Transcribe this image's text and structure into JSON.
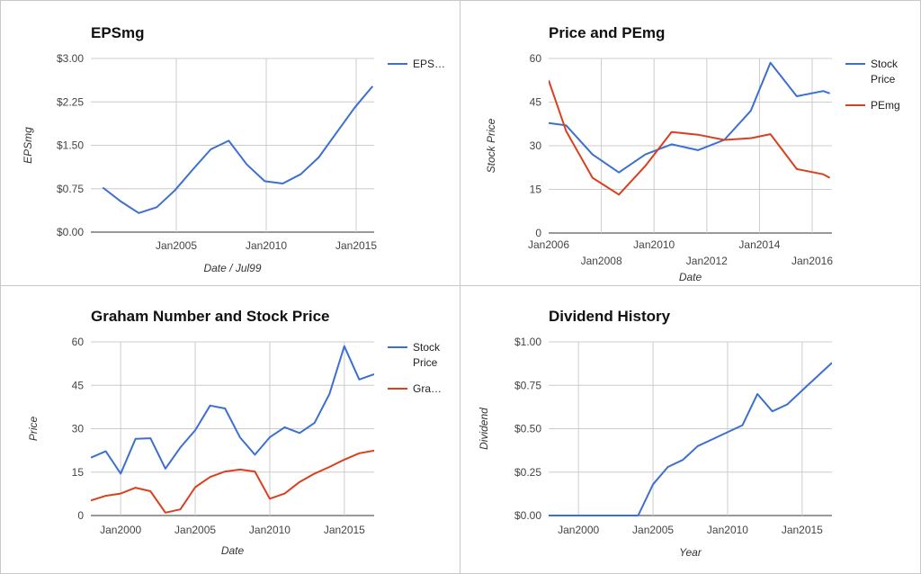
{
  "chart_data": [
    {
      "type": "line",
      "title": "EPSmg",
      "xlabel": "Date / Jul99",
      "ylabel": "EPSmg",
      "ylim": [
        0,
        3
      ],
      "y_ticks": [
        "$0.00",
        "$0.75",
        "$1.50",
        "$2.25",
        "$3.00"
      ],
      "x_ticks": [
        "Jan2005",
        "Jan2010",
        "Jan2015"
      ],
      "legend_position": "right",
      "grid": true,
      "series": [
        {
          "name": "EPS…",
          "color": "#3d6fcf",
          "points": [
            [
              "2000-12",
              0.77
            ],
            [
              "2001-12",
              0.53
            ],
            [
              "2002-12",
              0.33
            ],
            [
              "2003-12",
              0.43
            ],
            [
              "2004-12",
              0.72
            ],
            [
              "2005-12",
              1.08
            ],
            [
              "2006-12",
              1.43
            ],
            [
              "2007-12",
              1.58
            ],
            [
              "2008-12",
              1.17
            ],
            [
              "2009-12",
              0.88
            ],
            [
              "2010-12",
              0.84
            ],
            [
              "2011-12",
              1.0
            ],
            [
              "2012-12",
              1.29
            ],
            [
              "2013-12",
              1.72
            ],
            [
              "2014-12",
              2.15
            ],
            [
              "2015-08",
              2.4
            ],
            [
              "2015-12",
              2.52
            ]
          ]
        }
      ]
    },
    {
      "type": "line",
      "title": "Price and PEmg",
      "xlabel": "Date",
      "ylabel": "Stock Price",
      "ylim": [
        0,
        60
      ],
      "y_ticks": [
        "0",
        "15",
        "30",
        "45",
        "60"
      ],
      "x_ticks": [
        "Jan2006",
        "Jan2008",
        "Jan2010",
        "Jan2012",
        "Jan2014",
        "Jan2016"
      ],
      "legend_position": "right",
      "grid": true,
      "series": [
        {
          "name": "Stock Price",
          "color": "#3d6fcf",
          "points": [
            [
              "2006-01",
              37.8
            ],
            [
              "2006-09",
              37.0
            ],
            [
              "2007-09",
              27.0
            ],
            [
              "2008-09",
              20.8
            ],
            [
              "2009-09",
              27.0
            ],
            [
              "2010-09",
              30.5
            ],
            [
              "2011-09",
              28.5
            ],
            [
              "2012-09",
              32.0
            ],
            [
              "2013-09",
              42.0
            ],
            [
              "2014-06",
              58.5
            ],
            [
              "2015-06",
              47.0
            ],
            [
              "2016-06",
              48.8
            ],
            [
              "2016-09",
              48.0
            ]
          ]
        },
        {
          "name": "PEmg",
          "color": "#d9401e",
          "points": [
            [
              "2006-01",
              52.5
            ],
            [
              "2006-09",
              35.0
            ],
            [
              "2007-09",
              19.0
            ],
            [
              "2008-09",
              13.2
            ],
            [
              "2009-09",
              23.0
            ],
            [
              "2010-09",
              34.7
            ],
            [
              "2011-09",
              33.8
            ],
            [
              "2012-09",
              32.0
            ],
            [
              "2013-09",
              32.6
            ],
            [
              "2014-06",
              34.0
            ],
            [
              "2015-06",
              22.0
            ],
            [
              "2016-06",
              20.2
            ],
            [
              "2016-09",
              19.0
            ]
          ]
        }
      ]
    },
    {
      "type": "line",
      "title": "Graham Number and Stock Price",
      "xlabel": "Date",
      "ylabel": "Price",
      "ylim": [
        0,
        60
      ],
      "y_ticks": [
        "0",
        "15",
        "30",
        "45",
        "60"
      ],
      "x_ticks": [
        "Jan2000",
        "Jan2005",
        "Jan2010",
        "Jan2015"
      ],
      "legend_position": "right",
      "grid": true,
      "series": [
        {
          "name": "Stock Price",
          "color": "#3d6fcf",
          "points": [
            [
              "1998-01",
              20.0
            ],
            [
              "1999-01",
              22.2
            ],
            [
              "2000-01",
              14.5
            ],
            [
              "2001-01",
              26.5
            ],
            [
              "2002-01",
              26.7
            ],
            [
              "2003-01",
              16.2
            ],
            [
              "2004-01",
              23.5
            ],
            [
              "2005-01",
              29.5
            ],
            [
              "2006-01",
              38.0
            ],
            [
              "2007-01",
              37.0
            ],
            [
              "2008-01",
              27.0
            ],
            [
              "2009-01",
              21.0
            ],
            [
              "2010-01",
              27.0
            ],
            [
              "2011-01",
              30.5
            ],
            [
              "2012-01",
              28.5
            ],
            [
              "2013-01",
              32.0
            ],
            [
              "2014-01",
              42.0
            ],
            [
              "2015-01",
              58.5
            ],
            [
              "2016-01",
              47.0
            ],
            [
              "2017-01",
              48.8
            ]
          ]
        },
        {
          "name": "Gra…",
          "color": "#d9401e",
          "points": [
            [
              "1998-01",
              5.2
            ],
            [
              "1999-01",
              6.8
            ],
            [
              "2000-01",
              7.6
            ],
            [
              "2001-01",
              9.6
            ],
            [
              "2002-01",
              8.4
            ],
            [
              "2003-01",
              1.0
            ],
            [
              "2004-01",
              2.1
            ],
            [
              "2005-01",
              9.8
            ],
            [
              "2006-01",
              13.3
            ],
            [
              "2007-01",
              15.2
            ],
            [
              "2008-01",
              15.9
            ],
            [
              "2009-01",
              15.2
            ],
            [
              "2010-01",
              5.8
            ],
            [
              "2011-01",
              7.6
            ],
            [
              "2012-01",
              11.6
            ],
            [
              "2013-01",
              14.5
            ],
            [
              "2014-01",
              16.8
            ],
            [
              "2015-01",
              19.3
            ],
            [
              "2016-01",
              21.5
            ],
            [
              "2017-01",
              22.4
            ]
          ]
        }
      ]
    },
    {
      "type": "line",
      "title": "Dividend History",
      "xlabel": "Year",
      "ylabel": "Dividend",
      "ylim": [
        0,
        1
      ],
      "y_ticks": [
        "$0.00",
        "$0.25",
        "$0.50",
        "$0.75",
        "$1.00"
      ],
      "x_ticks": [
        "Jan2000",
        "Jan2005",
        "Jan2010",
        "Jan2015"
      ],
      "legend_position": "none",
      "grid": true,
      "series": [
        {
          "name": "",
          "color": "#3d6fcf",
          "points": [
            [
              "1998-01",
              0.0
            ],
            [
              "1999-01",
              0.0
            ],
            [
              "2000-01",
              0.0
            ],
            [
              "2001-01",
              0.0
            ],
            [
              "2002-01",
              0.0
            ],
            [
              "2003-01",
              0.0
            ],
            [
              "2004-01",
              0.0
            ],
            [
              "2005-01",
              0.18
            ],
            [
              "2006-01",
              0.28
            ],
            [
              "2007-01",
              0.32
            ],
            [
              "2008-01",
              0.4
            ],
            [
              "2009-01",
              0.44
            ],
            [
              "2010-01",
              0.48
            ],
            [
              "2011-01",
              0.52
            ],
            [
              "2012-01",
              0.7
            ],
            [
              "2013-01",
              0.6
            ],
            [
              "2014-01",
              0.64
            ],
            [
              "2015-01",
              0.72
            ],
            [
              "2016-01",
              0.8
            ],
            [
              "2017-01",
              0.88
            ]
          ]
        }
      ]
    }
  ]
}
